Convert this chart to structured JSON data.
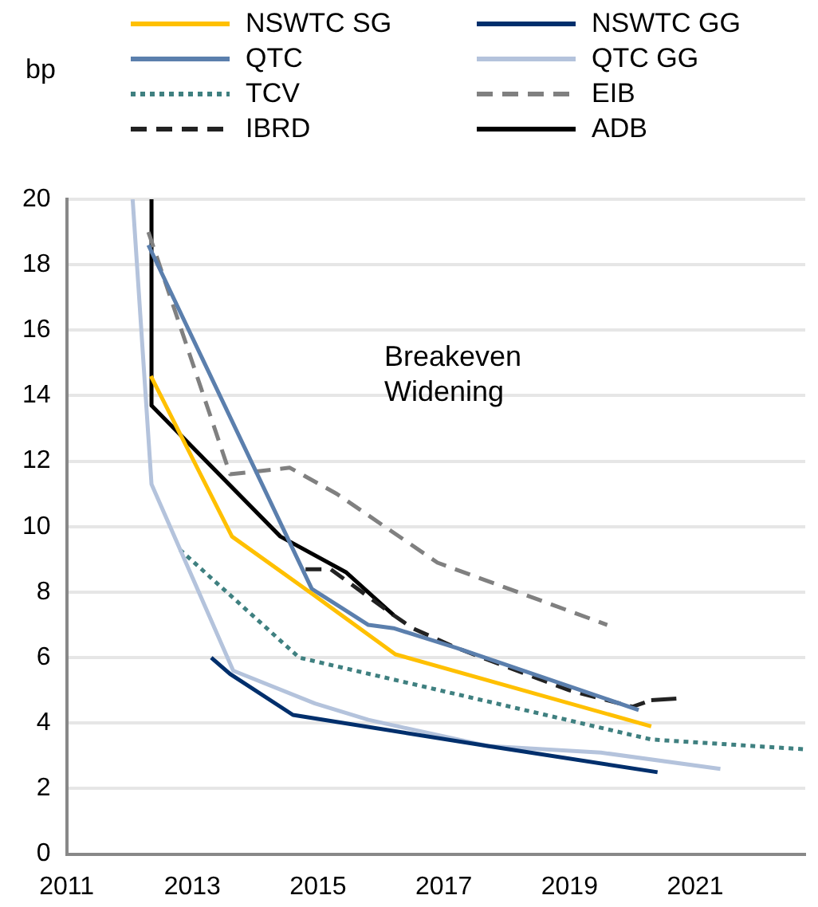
{
  "chart_data": {
    "type": "line",
    "ylabel": "bp",
    "annotations": [
      "Breakeven Widening"
    ],
    "xlim": [
      2011,
      2022.75
    ],
    "xticks": [
      2011,
      2013,
      2015,
      2017,
      2019,
      2021
    ],
    "ylim": [
      0,
      20
    ],
    "yticks": [
      0,
      2,
      4,
      6,
      8,
      10,
      12,
      14,
      16,
      18,
      20
    ],
    "grid": "y",
    "legend": "top",
    "marker": "none",
    "series": [
      {
        "name": "NSWTC SG",
        "color": "#ffc000",
        "line_style": "solid",
        "x": [
          2012.34,
          2013.63,
          2014.94,
          2016.23,
          2020.3
        ],
        "values": [
          14.6,
          9.7,
          7.9,
          6.1,
          3.9
        ]
      },
      {
        "name": "NSWTC GG",
        "color": "#002f6c",
        "line_style": "solid",
        "x": [
          2013.3,
          2013.6,
          2014.6,
          2017.7,
          2020.4
        ],
        "values": [
          6.0,
          5.5,
          4.25,
          3.3,
          2.5
        ]
      },
      {
        "name": "QTC",
        "color": "#5b7fad",
        "line_style": "solid",
        "x": [
          2012.3,
          2014.9,
          2015.8,
          2016.2,
          2017.2,
          2020.1
        ],
        "values": [
          18.6,
          8.1,
          7.0,
          6.9,
          6.3,
          4.4
        ]
      },
      {
        "name": "QTC GG",
        "color": "#b4c3dc",
        "line_style": "solid",
        "x": [
          2012.05,
          2012.35,
          2013.65,
          2014.95,
          2015.8,
          2017.7,
          2019.5,
          2021.4
        ],
        "values": [
          20,
          11.3,
          5.6,
          4.6,
          4.1,
          3.3,
          3.1,
          2.6
        ]
      },
      {
        "name": "TCV",
        "color": "#3f8080",
        "line_style": "dotted",
        "x": [
          2012.8,
          2014.7,
          2020.3,
          2022.75
        ],
        "values": [
          9.3,
          6.0,
          3.5,
          3.2
        ]
      },
      {
        "name": "EIB",
        "color": "#808080",
        "line_style": "dashed",
        "x": [
          2012.3,
          2013.6,
          2014.55,
          2015.3,
          2016.9,
          2019.6
        ],
        "values": [
          19,
          11.6,
          11.8,
          11.0,
          8.9,
          7.0
        ]
      },
      {
        "name": "IBRD",
        "color": "#222222",
        "line_style": "dashed",
        "x": [
          2014.8,
          2015.2,
          2016.2,
          2016.5,
          2017.2,
          2019.0,
          2020.0,
          2020.3,
          2020.7
        ],
        "values": [
          8.7,
          8.7,
          7.3,
          6.9,
          6.3,
          5.0,
          4.5,
          4.7,
          4.75
        ]
      },
      {
        "name": "ADB",
        "color": "#000000",
        "line_style": "solid",
        "x": [
          2012.35,
          2012.35,
          2014.4,
          2015.45,
          2016.2
        ],
        "values": [
          20,
          13.7,
          9.7,
          8.6,
          7.3
        ]
      }
    ]
  }
}
